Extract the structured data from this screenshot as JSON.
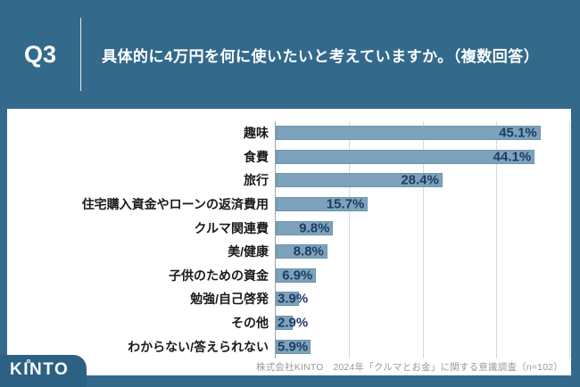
{
  "header": {
    "question_number": "Q3",
    "title": "具体的に4万円を何に使いたいと考えていますか。（複数回答）"
  },
  "chart_data": {
    "type": "bar",
    "orientation": "horizontal",
    "title": "具体的に4万円を何に使いたいと考えていますか。（複数回答）",
    "categories": [
      "趣味",
      "食費",
      "旅行",
      "住宅購入資金やローンの返済費用",
      "クルマ関連費",
      "美/健康",
      "子供のための資金",
      "勉強/自己啓発",
      "その他",
      "わからない/答えられない"
    ],
    "values": [
      45.1,
      44.1,
      28.4,
      15.7,
      9.8,
      8.8,
      6.9,
      3.9,
      2.9,
      5.9
    ],
    "value_suffix": "%",
    "xlim": [
      0,
      50
    ],
    "gridline_interval": 12.5,
    "grid": "vertical-lines",
    "legend": "none",
    "bar_color": "#7da3bc",
    "value_label_color": "#1f3b64"
  },
  "footer": {
    "source": "株式会社KINTO　2024年「クルマとお金」に関する意識調査（n=102）",
    "logo_text": "KINTO"
  },
  "colors": {
    "frame": "#336a8c",
    "panel": "#ffffff",
    "logo_background": "#2c6183",
    "gridline": "#d9d9d9",
    "axis": "#9fa3a6",
    "category_text": "#1a1a1a",
    "source_text": "#999999"
  }
}
